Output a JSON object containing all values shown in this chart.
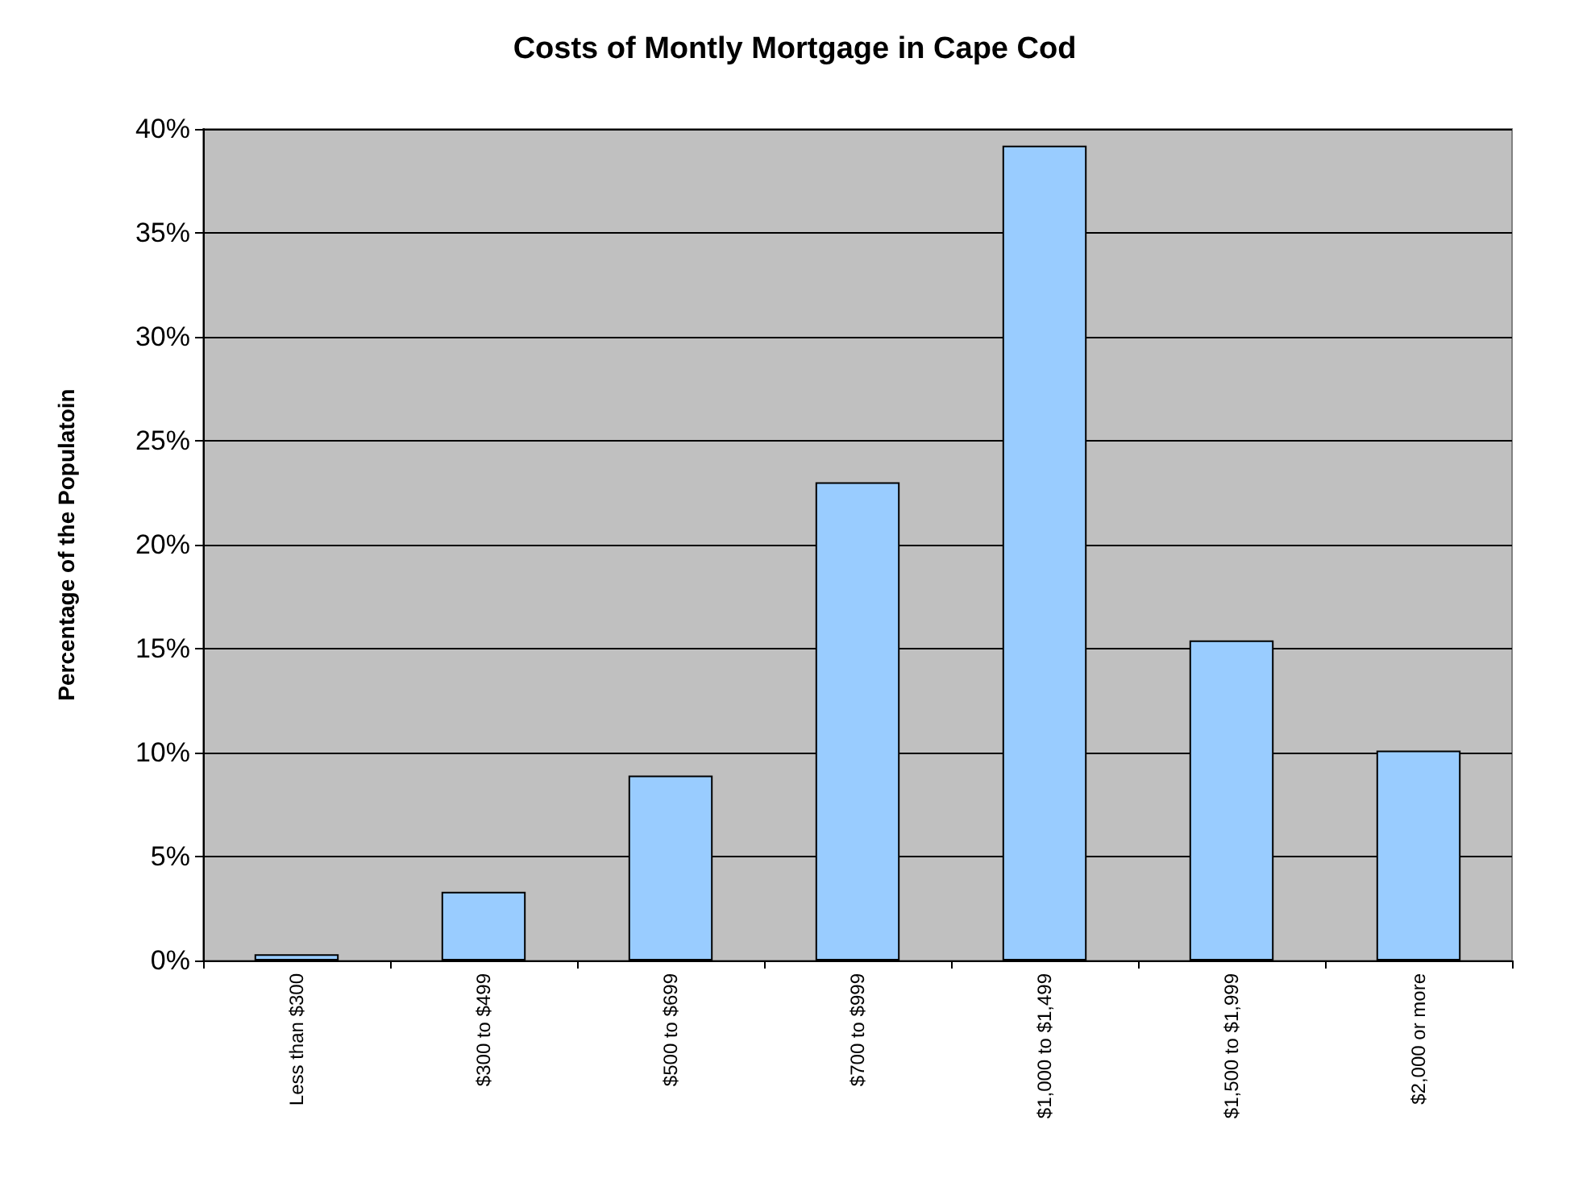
{
  "chart_data": {
    "type": "bar",
    "title": "Costs of Montly Mortgage in Cape Cod",
    "ylabel": "Percentage of the Populatoin",
    "categories": [
      "Less than $300",
      "$300 to $499",
      "$500 to $699",
      "$700 to $999",
      "$1,000 to $1,499",
      "$1,500 to $1,999",
      "$2,000 or more"
    ],
    "values": [
      0.3,
      3.3,
      8.9,
      23,
      39.2,
      15.4,
      10.1
    ],
    "color": "#99ccff",
    "ylim": [
      0,
      40
    ],
    "yticks": [
      {
        "value": 0,
        "label": "0%"
      },
      {
        "value": 5,
        "label": "5%"
      },
      {
        "value": 10,
        "label": "10%"
      },
      {
        "value": 15,
        "label": "15%"
      },
      {
        "value": 20,
        "label": "20%"
      },
      {
        "value": 25,
        "label": "25%"
      },
      {
        "value": 30,
        "label": "30%"
      },
      {
        "value": 35,
        "label": "35%"
      },
      {
        "value": 40,
        "label": "40%"
      }
    ],
    "grid": true
  }
}
